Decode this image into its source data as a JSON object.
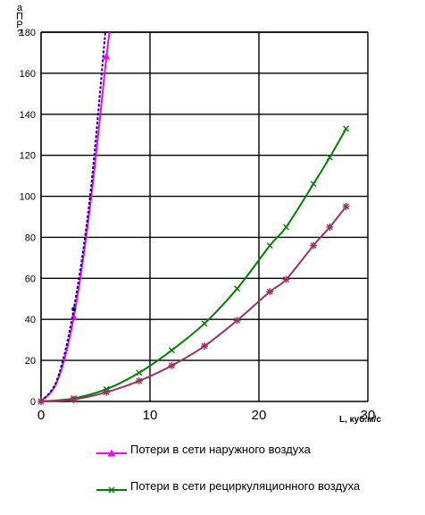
{
  "chart_data": {
    "type": "line",
    "ylabel_letters": [
      "а",
      "П",
      "Р",
      "?"
    ],
    "xlabel": "L, куб.м/с",
    "xlim": [
      0,
      30
    ],
    "ylim": [
      0,
      180
    ],
    "x_ticks": [
      "0",
      "10",
      "20",
      "30"
    ],
    "y_ticks": [
      "0",
      "20",
      "40",
      "60",
      "80",
      "100",
      "120",
      "140",
      "160",
      "180"
    ],
    "grid": true,
    "legend_position": "bottom",
    "series": [
      {
        "name": "Потери в сети наружного воздуха",
        "color": "#ff00ff",
        "marker": "triangle",
        "x": [
          0,
          1.5,
          3,
          4.5,
          6,
          6.3
        ],
        "y": [
          0,
          10,
          41,
          95,
          168,
          180
        ]
      },
      {
        "name": "",
        "color": "#000080",
        "marker": "dot",
        "dashed": true,
        "x": [
          0,
          1.5,
          3,
          4.5,
          5.9
        ],
        "y": [
          0,
          11,
          45,
          100,
          180
        ]
      },
      {
        "name": "Потери в сети рециркуляционного воздуха",
        "color": "#008000",
        "marker": "x",
        "x": [
          0,
          3,
          6,
          9,
          12,
          15,
          18,
          21,
          22.5,
          25,
          26.5,
          28
        ],
        "y": [
          0,
          1.5,
          6,
          14,
          25,
          38,
          55,
          76,
          85,
          106,
          119,
          133
        ]
      },
      {
        "name": "",
        "color": "#993366",
        "marker": "star",
        "x": [
          0,
          3,
          6,
          9,
          12,
          15,
          18,
          21,
          22.5,
          25,
          26.5,
          28
        ],
        "y": [
          0,
          1,
          4.5,
          10,
          17.5,
          27,
          39.5,
          53.5,
          59.5,
          76,
          85,
          95
        ]
      }
    ]
  },
  "legend": [
    {
      "label": "Потери в сети наружного воздуха",
      "color": "#ff00ff",
      "marker": "triangle"
    },
    {
      "label": "Потери в сети рециркуляционного воздуха",
      "color": "#008000",
      "marker": "x"
    }
  ]
}
